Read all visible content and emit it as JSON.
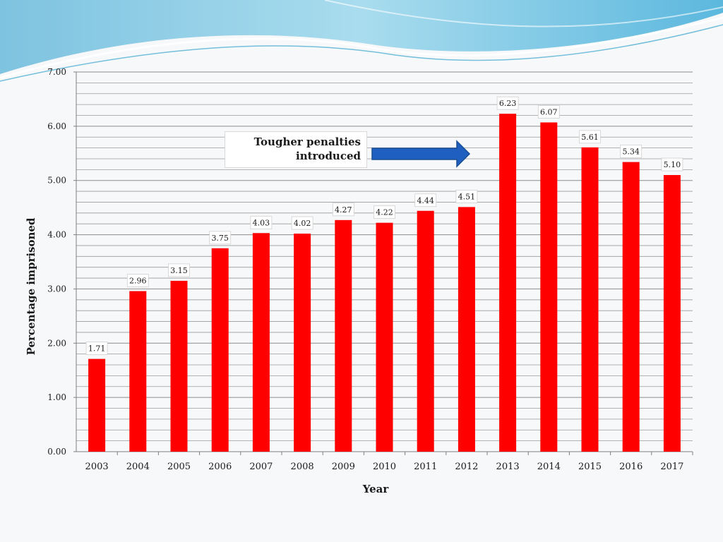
{
  "chart_data": {
    "type": "bar",
    "title": "",
    "xlabel": "Year",
    "ylabel": "Percentage imprisoned",
    "ylim": [
      0,
      7
    ],
    "yticks": [
      "0.00",
      "1.00",
      "2.00",
      "3.00",
      "4.00",
      "5.00",
      "6.00",
      "7.00"
    ],
    "minor_grid_step": 0.2,
    "grid": true,
    "categories": [
      "2003",
      "2004",
      "2005",
      "2006",
      "2007",
      "2008",
      "2009",
      "2010",
      "2011",
      "2012",
      "2013",
      "2014",
      "2015",
      "2016",
      "2017"
    ],
    "values": [
      1.71,
      2.96,
      3.15,
      3.75,
      4.03,
      4.02,
      4.27,
      4.22,
      4.44,
      4.51,
      6.23,
      6.07,
      5.61,
      5.34,
      5.1
    ],
    "value_labels": [
      "1.71",
      "2.96",
      "3.15",
      "3.75",
      "4.03",
      "4.02",
      "4.27",
      "4.22",
      "4.44",
      "4.51",
      "6.23",
      "6.07",
      "5.61",
      "5.34",
      "5.10"
    ],
    "bar_color": "#ff0000",
    "annotation": {
      "line1": "Tougher penalties",
      "line2": "introduced",
      "arrow_color": "#1f5fbf"
    }
  }
}
